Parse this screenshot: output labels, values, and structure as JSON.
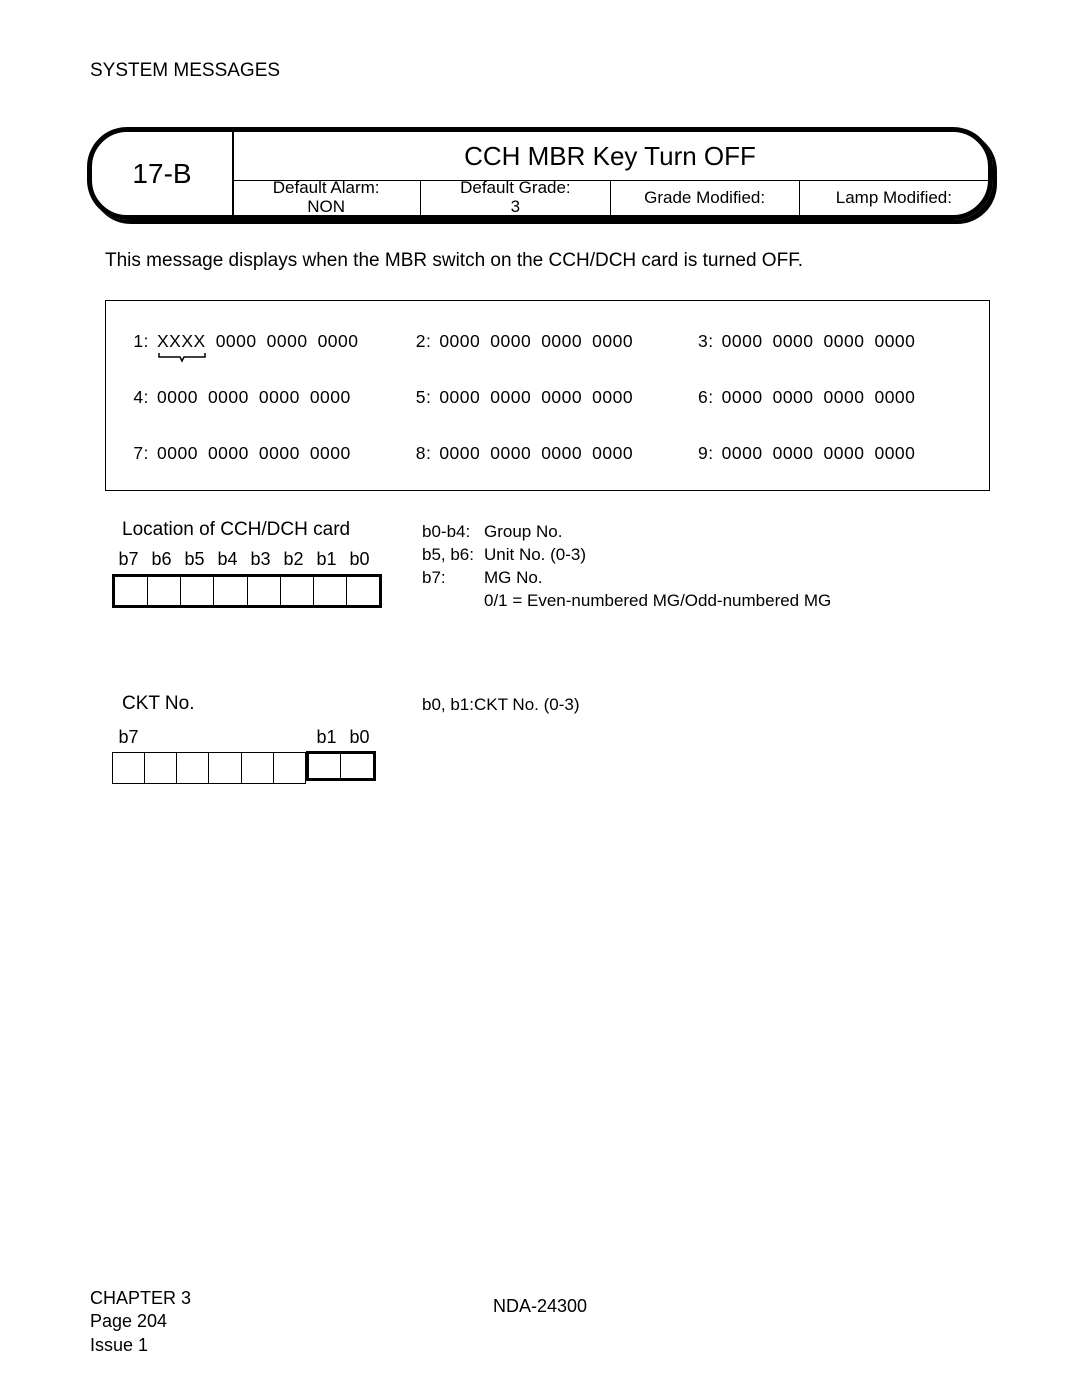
{
  "header": "SYSTEM MESSAGES",
  "banner": {
    "code": "17-B",
    "title": "CCH MBR Key Turn OFF",
    "cells": [
      {
        "label": "Default Alarm:",
        "value": "NON"
      },
      {
        "label": "Default Grade:",
        "value": "3"
      },
      {
        "label": "Grade Modified:",
        "value": ""
      },
      {
        "label": "Lamp Modified:",
        "value": ""
      }
    ]
  },
  "description": "This message displays when the MBR switch on the CCH/DCH card is turned OFF.",
  "data_rows": [
    [
      {
        "label": "1:",
        "vals": [
          "XXXX",
          "0000",
          "0000",
          "0000"
        ],
        "brace": true
      },
      {
        "label": "2:",
        "vals": [
          "0000",
          "0000",
          "0000",
          "0000"
        ]
      },
      {
        "label": "3:",
        "vals": [
          "0000",
          "0000",
          "0000",
          "0000"
        ]
      }
    ],
    [
      {
        "label": "4:",
        "vals": [
          "0000",
          "0000",
          "0000",
          "0000"
        ]
      },
      {
        "label": "5:",
        "vals": [
          "0000",
          "0000",
          "0000",
          "0000"
        ]
      },
      {
        "label": "6:",
        "vals": [
          "0000",
          "0000",
          "0000",
          "0000"
        ]
      }
    ],
    [
      {
        "label": "7:",
        "vals": [
          "0000",
          "0000",
          "0000",
          "0000"
        ]
      },
      {
        "label": "8:",
        "vals": [
          "0000",
          "0000",
          "0000",
          "0000"
        ]
      },
      {
        "label": "9:",
        "vals": [
          "0000",
          "0000",
          "0000",
          "0000"
        ]
      }
    ]
  ],
  "bits1": {
    "title": "Location of CCH/DCH card",
    "labels": [
      "b7",
      "b6",
      "b5",
      "b4",
      "b3",
      "b2",
      "b1",
      "b0"
    ],
    "legend": [
      {
        "k": "b0-b4:",
        "v": "Group No."
      },
      {
        "k": "b5, b6:",
        "v": "Unit No. (0-3)"
      },
      {
        "k": "b7:",
        "v": "MG No."
      },
      {
        "k": "",
        "v": "0/1 = Even-numbered MG/Odd-numbered MG"
      }
    ]
  },
  "bits2": {
    "title": "CKT No.",
    "label_left": "b7",
    "label_r1": "b1",
    "label_r0": "b0",
    "legend": [
      {
        "k": "b0, b1:",
        "v": "CKT No. (0-3)"
      }
    ]
  },
  "footer": {
    "chapter": "CHAPTER 3",
    "page": "Page 204",
    "issue": "Issue 1",
    "doc": "NDA-24300"
  }
}
